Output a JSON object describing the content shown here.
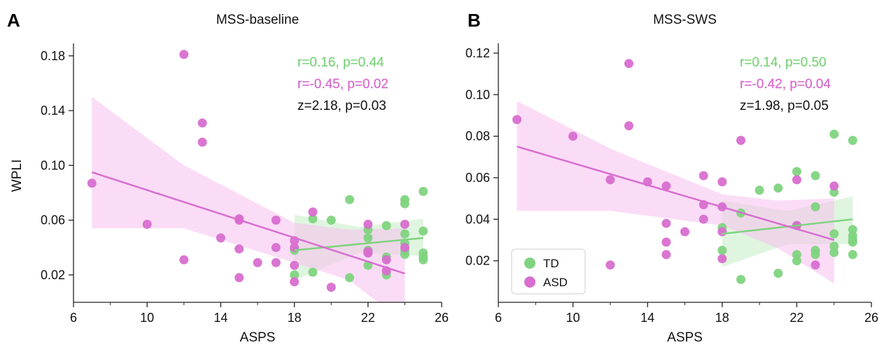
{
  "colors": {
    "td": "#7fd47f",
    "asd": "#d86ed0",
    "td_band": "#b9e9b9",
    "asd_band": "#f7c0ee",
    "stats_black": "#111111"
  },
  "legend": {
    "placement": "lower-left of panel B",
    "items": [
      {
        "label": "TD",
        "color": "#7fd47f"
      },
      {
        "label": "ASD",
        "color": "#d86ed0"
      }
    ]
  },
  "chart_data": [
    {
      "panel_letter": "A",
      "type": "scatter",
      "title": "MSS-baseline",
      "xlabel": "ASPS",
      "ylabel": "WPLI",
      "xlim": [
        6,
        26
      ],
      "ylim": [
        0.0,
        0.185
      ],
      "xticks": [
        6,
        10,
        14,
        18,
        22,
        26
      ],
      "xminor": [
        8,
        12,
        16,
        20,
        24
      ],
      "yticks": [
        0.02,
        0.06,
        0.1,
        0.14,
        0.18
      ],
      "ytick_labels": [
        "0.02",
        "0.06",
        "0.10",
        "0.14",
        "0.18"
      ],
      "stats": [
        {
          "text": "r=0.16, p=0.44",
          "series": "TD"
        },
        {
          "text": "r=-0.45, p=0.02",
          "series": "ASD"
        },
        {
          "text": "z=2.18, p=0.03",
          "series": "none"
        }
      ],
      "series": [
        {
          "name": "TD",
          "points": [
            [
              18,
              0.038
            ],
            [
              18,
              0.02
            ],
            [
              19,
              0.061
            ],
            [
              19,
              0.022
            ],
            [
              20,
              0.06
            ],
            [
              21,
              0.075
            ],
            [
              21,
              0.018
            ],
            [
              22,
              0.053
            ],
            [
              22,
              0.047
            ],
            [
              22,
              0.038
            ],
            [
              22,
              0.027
            ],
            [
              23,
              0.056
            ],
            [
              23,
              0.033
            ],
            [
              23,
              0.02
            ],
            [
              24,
              0.075
            ],
            [
              24,
              0.072
            ],
            [
              24,
              0.05
            ],
            [
              24,
              0.043
            ],
            [
              24,
              0.038
            ],
            [
              24,
              0.035
            ],
            [
              25,
              0.081
            ],
            [
              25,
              0.052
            ],
            [
              25,
              0.036
            ],
            [
              25,
              0.033
            ],
            [
              25,
              0.031
            ]
          ],
          "fit": {
            "x": [
              18,
              25
            ],
            "y": [
              0.038,
              0.047
            ]
          },
          "ci": {
            "x": [
              18,
              21.5,
              25
            ],
            "upper": [
              0.064,
              0.055,
              0.061
            ],
            "lower": [
              0.016,
              0.036,
              0.034
            ]
          }
        },
        {
          "name": "ASD",
          "points": [
            [
              7,
              0.087
            ],
            [
              10,
              0.057
            ],
            [
              12,
              0.181
            ],
            [
              12,
              0.031
            ],
            [
              13,
              0.131
            ],
            [
              13,
              0.117
            ],
            [
              14,
              0.047
            ],
            [
              15,
              0.061
            ],
            [
              15,
              0.06
            ],
            [
              15,
              0.039
            ],
            [
              15,
              0.018
            ],
            [
              16,
              0.029
            ],
            [
              17,
              0.06
            ],
            [
              17,
              0.04
            ],
            [
              17,
              0.029
            ],
            [
              18,
              0.045
            ],
            [
              18,
              0.04
            ],
            [
              18,
              0.027
            ],
            [
              18,
              0.015
            ],
            [
              19,
              0.066
            ],
            [
              20,
              0.011
            ],
            [
              22,
              0.057
            ],
            [
              22,
              0.037
            ],
            [
              22,
              0.036
            ],
            [
              23,
              0.031
            ],
            [
              23,
              0.023
            ],
            [
              24,
              0.057
            ],
            [
              24,
              0.04
            ]
          ],
          "fit": {
            "x": [
              7,
              24
            ],
            "y": [
              0.095,
              0.021
            ]
          },
          "ci": {
            "x": [
              7,
              12,
              18,
              21,
              24
            ],
            "upper": [
              0.15,
              0.1,
              0.058,
              0.053,
              0.054
            ],
            "lower": [
              0.054,
              0.054,
              0.029,
              0.016,
              -0.015
            ]
          }
        }
      ]
    },
    {
      "panel_letter": "B",
      "type": "scatter",
      "title": "MSS-SWS",
      "xlabel": "ASPS",
      "ylabel": "",
      "xlim": [
        6,
        26
      ],
      "ylim": [
        0.0,
        0.122
      ],
      "xticks": [
        6,
        10,
        14,
        18,
        22,
        26
      ],
      "xminor": [
        8,
        12,
        16,
        20,
        24
      ],
      "yticks": [
        0.02,
        0.04,
        0.06,
        0.08,
        0.1,
        0.12
      ],
      "ytick_labels": [
        "0.02",
        "0.04",
        "0.06",
        "0.08",
        "0.10",
        "0.12"
      ],
      "stats": [
        {
          "text": "r=0.14, p=0.50",
          "series": "TD"
        },
        {
          "text": "r=-0.42, p=0.04",
          "series": "ASD"
        },
        {
          "text": "z=1.98, p=0.05",
          "series": "none"
        }
      ],
      "series": [
        {
          "name": "TD",
          "points": [
            [
              18,
              0.036
            ],
            [
              18,
              0.025
            ],
            [
              19,
              0.043
            ],
            [
              19,
              0.011
            ],
            [
              20,
              0.054
            ],
            [
              21,
              0.055
            ],
            [
              21,
              0.014
            ],
            [
              22,
              0.063
            ],
            [
              22,
              0.037
            ],
            [
              22,
              0.023
            ],
            [
              22,
              0.02
            ],
            [
              23,
              0.061
            ],
            [
              23,
              0.046
            ],
            [
              23,
              0.025
            ],
            [
              23,
              0.023
            ],
            [
              24,
              0.081
            ],
            [
              24,
              0.053
            ],
            [
              24,
              0.033
            ],
            [
              24,
              0.027
            ],
            [
              24,
              0.024
            ],
            [
              25,
              0.078
            ],
            [
              25,
              0.035
            ],
            [
              25,
              0.032
            ],
            [
              25,
              0.03
            ],
            [
              25,
              0.029
            ],
            [
              25,
              0.023
            ]
          ],
          "fit": {
            "x": [
              18,
              25
            ],
            "y": [
              0.033,
              0.04
            ]
          },
          "ci": {
            "x": [
              18,
              21.5,
              25
            ],
            "upper": [
              0.049,
              0.044,
              0.051
            ],
            "lower": [
              0.017,
              0.028,
              0.028
            ]
          }
        },
        {
          "name": "ASD",
          "points": [
            [
              7,
              0.088
            ],
            [
              10,
              0.08
            ],
            [
              12,
              0.059
            ],
            [
              12,
              0.018
            ],
            [
              13,
              0.115
            ],
            [
              13,
              0.085
            ],
            [
              14,
              0.058
            ],
            [
              15,
              0.056
            ],
            [
              15,
              0.038
            ],
            [
              15,
              0.029
            ],
            [
              15,
              0.023
            ],
            [
              16,
              0.034
            ],
            [
              17,
              0.061
            ],
            [
              17,
              0.047
            ],
            [
              17,
              0.04
            ],
            [
              18,
              0.058
            ],
            [
              18,
              0.046
            ],
            [
              18,
              0.034
            ],
            [
              18,
              0.021
            ],
            [
              19,
              0.078
            ],
            [
              22,
              0.059
            ],
            [
              22,
              0.037
            ],
            [
              23,
              0.018
            ],
            [
              24,
              0.056
            ]
          ],
          "fit": {
            "x": [
              7,
              24
            ],
            "y": [
              0.075,
              0.03
            ]
          },
          "ci": {
            "x": [
              7,
              12,
              18,
              21,
              24
            ],
            "upper": [
              0.097,
              0.074,
              0.052,
              0.049,
              0.05
            ],
            "lower": [
              0.044,
              0.044,
              0.037,
              0.026,
              0.009
            ]
          }
        }
      ]
    }
  ]
}
